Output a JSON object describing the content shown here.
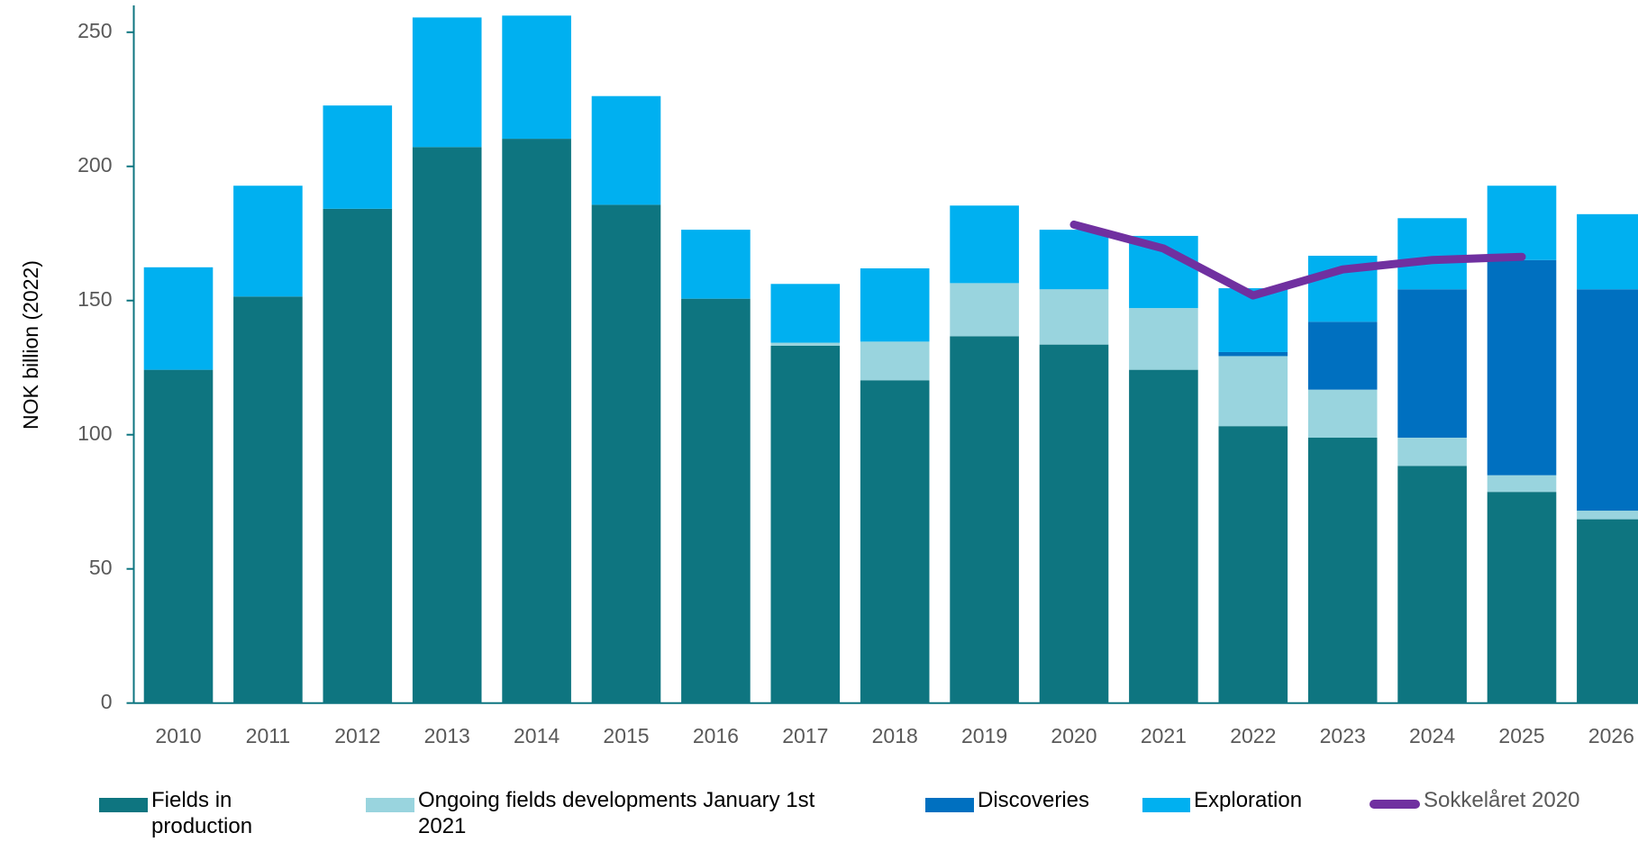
{
  "chart_data": {
    "type": "stacked-bar-line",
    "y_label": "NOK billion (2022)",
    "categories": [
      "2010",
      "2011",
      "2012",
      "2013",
      "2014",
      "2015",
      "2016",
      "2017",
      "2018",
      "2019",
      "2020",
      "2021",
      "2022",
      "2023",
      "2024",
      "2025",
      "2026"
    ],
    "series": [
      {
        "name": "Fields in production",
        "color": "#0e7580",
        "kind": "bar",
        "values": [
          124.2,
          151.5,
          184.2,
          207.2,
          210.3,
          185.7,
          150.7,
          133.2,
          120.3,
          136.7,
          133.6,
          124.2,
          103.2,
          98.9,
          88.4,
          78.7,
          68.5
        ]
      },
      {
        "name": "Ongoing fields developments January 1st 2021",
        "color": "#99d4de",
        "kind": "bar",
        "values": [
          null,
          null,
          null,
          null,
          null,
          null,
          null,
          1.1,
          14.4,
          19.8,
          20.6,
          23.0,
          26.1,
          17.9,
          10.5,
          6.2,
          3.2
        ]
      },
      {
        "name": "Discoveries",
        "color": "#0070c0",
        "kind": "bar",
        "values": [
          null,
          null,
          null,
          null,
          null,
          null,
          null,
          null,
          null,
          null,
          null,
          null,
          1.5,
          25.3,
          55.3,
          80.2,
          82.5
        ]
      },
      {
        "name": "Exploration",
        "color": "#00b0f0",
        "kind": "bar",
        "values": [
          38.2,
          41.3,
          38.5,
          48.3,
          45.9,
          40.5,
          25.7,
          21.9,
          27.3,
          28.9,
          22.2,
          26.9,
          23.8,
          24.6,
          26.5,
          27.7,
          28.0
        ]
      },
      {
        "name": "Sokkelåret 2020",
        "color": "#7030a0",
        "kind": "line",
        "values": [
          null,
          null,
          null,
          null,
          null,
          null,
          null,
          null,
          null,
          null,
          178.3,
          169.4,
          151.9,
          161.6,
          165.1,
          166.3,
          null
        ]
      }
    ],
    "ylim": [
      0,
      260
    ],
    "yticks": [
      0,
      50,
      100,
      150,
      200,
      250
    ],
    "legend": "bottom"
  }
}
